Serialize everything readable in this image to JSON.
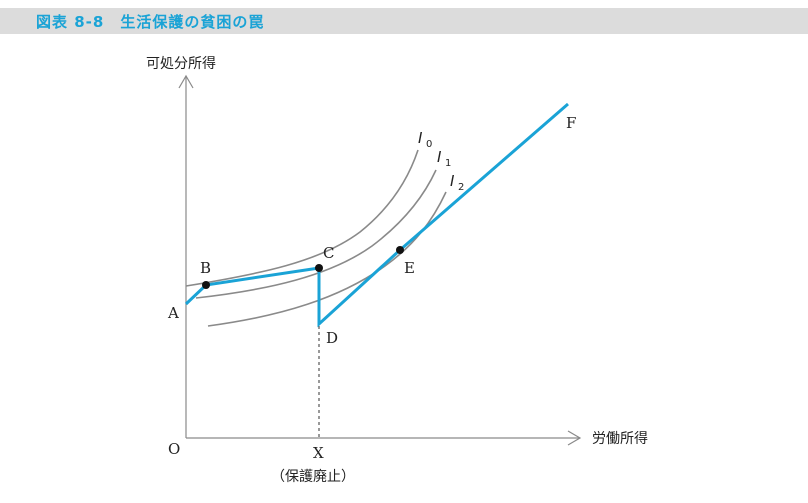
{
  "title": "図表 8-8　生活保護の貧困の罠",
  "axes": {
    "y_label": "可処分所得",
    "x_label": "労働所得",
    "origin": "O",
    "x_mark": "X",
    "x_mark_note": "（保護廃止）"
  },
  "curves": [
    {
      "name": "I",
      "sub": "0"
    },
    {
      "name": "I",
      "sub": "1"
    },
    {
      "name": "I",
      "sub": "2"
    }
  ],
  "points": {
    "A": "A",
    "B": "B",
    "C": "C",
    "D": "D",
    "E": "E",
    "F": "F"
  },
  "colors": {
    "title": "#1aa3d6",
    "budget_line": "#1aa3d6",
    "curve": "#8a8a8a",
    "axis": "#8a8a8a"
  }
}
